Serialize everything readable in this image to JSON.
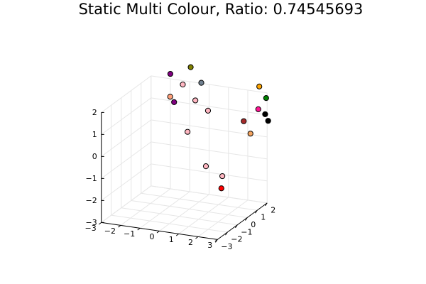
{
  "chart_data": {
    "type": "scatter",
    "title": "Static Multi Colour, Ratio: 0.74545693",
    "xlabel": "",
    "ylabel": "",
    "zlabel": "",
    "xlim": [
      -3,
      3
    ],
    "ylim": [
      -3,
      2
    ],
    "zlim": [
      -3,
      2
    ],
    "grid": true,
    "legend": "none",
    "x_ticks": [
      "−3",
      "−2",
      "−1",
      "0",
      "1",
      "2",
      "3"
    ],
    "y_ticks": [
      "−3",
      "−2",
      "−1",
      "0",
      "1",
      "2"
    ],
    "z_ticks": [
      "−3",
      "−2",
      "−1",
      "0",
      "1",
      "2"
    ],
    "points": [
      {
        "x": -1.9,
        "y": 1.8,
        "z": 2.3,
        "color": "#800080"
      },
      {
        "x": -1.5,
        "y": 1.4,
        "z": 1.2,
        "color": "#800080"
      },
      {
        "x": -1.6,
        "y": 1.2,
        "z": 1.5,
        "color": "#ffa07a"
      },
      {
        "x": -0.9,
        "y": 1.9,
        "z": 2.7,
        "color": "#808000"
      },
      {
        "x": -1.0,
        "y": 1.3,
        "z": 2.1,
        "color": "#ffb6c1"
      },
      {
        "x": -0.3,
        "y": 1.8,
        "z": 2.1,
        "color": "#708090"
      },
      {
        "x": -0.3,
        "y": 1.2,
        "z": 1.5,
        "color": "#ffb6c1"
      },
      {
        "x": 0.2,
        "y": 1.5,
        "z": 1.0,
        "color": "#ffb6c1"
      },
      {
        "x": -0.6,
        "y": 1.0,
        "z": 0.1,
        "color": "#ffb6c1"
      },
      {
        "x": 0.4,
        "y": 0.9,
        "z": -1.3,
        "color": "#ffb6c1"
      },
      {
        "x": 1.3,
        "y": 0.8,
        "z": -1.6,
        "color": "#ffb6c1"
      },
      {
        "x": 1.2,
        "y": 0.9,
        "z": -2.2,
        "color": "#ff0000"
      },
      {
        "x": 2.1,
        "y": 1.4,
        "z": 0.8,
        "color": "#a52a2a"
      },
      {
        "x": 2.8,
        "y": 1.6,
        "z": 2.4,
        "color": "#ffa500"
      },
      {
        "x": 2.8,
        "y": 1.5,
        "z": 1.4,
        "color": "#ff1493"
      },
      {
        "x": 3.0,
        "y": 1.9,
        "z": 1.8,
        "color": "#008000"
      },
      {
        "x": 3.0,
        "y": 1.8,
        "z": 1.1,
        "color": "#000000"
      },
      {
        "x": 3.0,
        "y": 2.1,
        "z": 0.7,
        "color": "#000000"
      },
      {
        "x": 2.6,
        "y": 1.1,
        "z": 0.4,
        "color": "#f4a460"
      }
    ]
  }
}
